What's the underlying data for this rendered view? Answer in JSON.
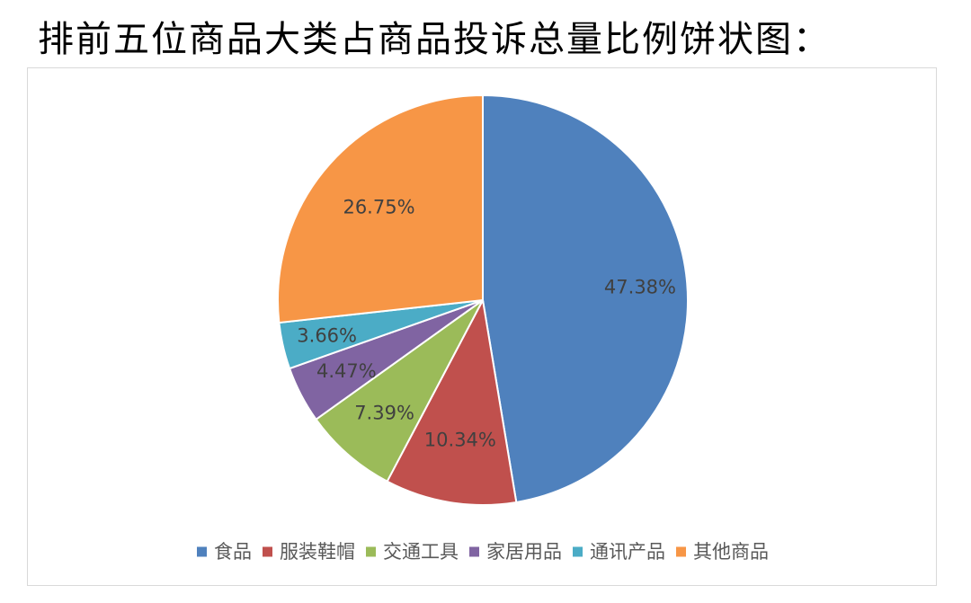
{
  "page": {
    "title": "排前五位商品大类占商品投诉总量比例饼状图："
  },
  "chart_data": {
    "type": "pie",
    "title": "",
    "legend_position": "bottom",
    "slices": [
      {
        "label": "食品",
        "value": 47.38,
        "display": "47.38%",
        "color": "#4f81bd"
      },
      {
        "label": "服装鞋帽",
        "value": 10.34,
        "display": "10.34%",
        "color": "#c0504d"
      },
      {
        "label": "交通工具",
        "value": 7.39,
        "display": "7.39%",
        "color": "#9bbb59"
      },
      {
        "label": "家居用品",
        "value": 4.47,
        "display": "4.47%",
        "color": "#8064a2"
      },
      {
        "label": "通讯产品",
        "value": 3.66,
        "display": "3.66%",
        "color": "#4bacc6"
      },
      {
        "label": "其他商品",
        "value": 26.75,
        "display": "26.75%",
        "color": "#f79646"
      }
    ]
  }
}
